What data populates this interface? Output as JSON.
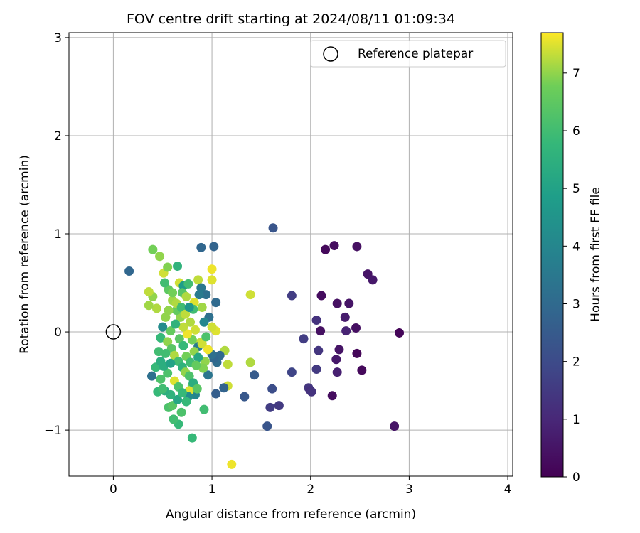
{
  "chart_data": {
    "type": "scatter",
    "title": "FOV centre drift starting at 2024/08/11 01:09:34",
    "xlabel": "Angular distance from reference (arcmin)",
    "ylabel": "Rotation from reference (arcmin)",
    "xlim": [
      -0.45,
      4.05
    ],
    "ylim": [
      -1.47,
      3.05
    ],
    "xticks": [
      0,
      1,
      2,
      3,
      4
    ],
    "xtick_labels": [
      "0",
      "1",
      "2",
      "3",
      "4"
    ],
    "yticks": [
      -1,
      0,
      1,
      2,
      3
    ],
    "ytick_labels": [
      "−1",
      "0",
      "1",
      "2",
      "3"
    ],
    "grid": true,
    "legend": {
      "placement": "upper-right",
      "entry": "Reference platepar"
    },
    "reference_point": {
      "x": 0,
      "y": 0
    },
    "colorbar": {
      "label": "Hours from first FF file",
      "range": [
        0,
        7.7
      ],
      "ticks": [
        0,
        1,
        2,
        3,
        4,
        5,
        6,
        7
      ],
      "tick_labels": [
        "0",
        "1",
        "2",
        "3",
        "4",
        "5",
        "6",
        "7"
      ],
      "colormap": "viridis"
    },
    "points": [
      {
        "x": 2.9,
        "y": -0.01,
        "h": 0.1
      },
      {
        "x": 2.85,
        "y": -0.96,
        "h": 0.5
      },
      {
        "x": 2.47,
        "y": -0.22,
        "h": 0.15
      },
      {
        "x": 2.52,
        "y": -0.39,
        "h": 0.2
      },
      {
        "x": 2.22,
        "y": -0.65,
        "h": 0.3
      },
      {
        "x": 2.46,
        "y": 0.04,
        "h": 0.35
      },
      {
        "x": 2.36,
        "y": 0.01,
        "h": 0.9
      },
      {
        "x": 2.35,
        "y": 0.15,
        "h": 0.7
      },
      {
        "x": 2.39,
        "y": 0.29,
        "h": 0.5
      },
      {
        "x": 2.27,
        "y": 0.29,
        "h": 0.4
      },
      {
        "x": 2.29,
        "y": -0.18,
        "h": 0.5
      },
      {
        "x": 2.26,
        "y": -0.28,
        "h": 0.6
      },
      {
        "x": 2.27,
        "y": -0.41,
        "h": 0.8
      },
      {
        "x": 2.15,
        "y": 0.84,
        "h": 0.2
      },
      {
        "x": 2.24,
        "y": 0.88,
        "h": 0.3
      },
      {
        "x": 2.47,
        "y": 0.87,
        "h": 0.4
      },
      {
        "x": 2.58,
        "y": 0.59,
        "h": 0.5
      },
      {
        "x": 2.63,
        "y": 0.53,
        "h": 0.6
      },
      {
        "x": 2.11,
        "y": 0.37,
        "h": 0.3
      },
      {
        "x": 2.1,
        "y": 0.01,
        "h": 0.4
      },
      {
        "x": 2.06,
        "y": 0.12,
        "h": 1.3
      },
      {
        "x": 2.08,
        "y": -0.19,
        "h": 1.4
      },
      {
        "x": 2.06,
        "y": -0.38,
        "h": 1.5
      },
      {
        "x": 1.93,
        "y": -0.07,
        "h": 1.6
      },
      {
        "x": 1.98,
        "y": -0.57,
        "h": 1.4
      },
      {
        "x": 2.0,
        "y": -0.6,
        "h": 1.2
      },
      {
        "x": 2.01,
        "y": -0.61,
        "h": 1.3
      },
      {
        "x": 1.81,
        "y": -0.41,
        "h": 1.8
      },
      {
        "x": 1.81,
        "y": 0.37,
        "h": 1.6
      },
      {
        "x": 1.68,
        "y": -0.75,
        "h": 1.5
      },
      {
        "x": 1.59,
        "y": -0.77,
        "h": 1.6
      },
      {
        "x": 1.61,
        "y": -0.58,
        "h": 2.1
      },
      {
        "x": 1.56,
        "y": -0.96,
        "h": 2.3
      },
      {
        "x": 1.62,
        "y": 1.06,
        "h": 2.3
      },
      {
        "x": 1.43,
        "y": -0.44,
        "h": 2.5
      },
      {
        "x": 1.33,
        "y": -0.66,
        "h": 2.4
      },
      {
        "x": 1.39,
        "y": 0.38,
        "h": 7.4
      },
      {
        "x": 1.39,
        "y": -0.31,
        "h": 7.2
      },
      {
        "x": 1.2,
        "y": -1.35,
        "h": 7.6
      },
      {
        "x": 1.16,
        "y": -0.55,
        "h": 7.4
      },
      {
        "x": 1.16,
        "y": -0.33,
        "h": 7.3
      },
      {
        "x": 1.13,
        "y": -0.19,
        "h": 7.2
      },
      {
        "x": 1.12,
        "y": -0.57,
        "h": 2.8
      },
      {
        "x": 1.08,
        "y": -0.24,
        "h": 3.0
      },
      {
        "x": 1.05,
        "y": -0.31,
        "h": 3.1
      },
      {
        "x": 1.02,
        "y": -0.27,
        "h": 2.9
      },
      {
        "x": 1.0,
        "y": -0.23,
        "h": 3.2
      },
      {
        "x": 1.04,
        "y": -0.63,
        "h": 2.6
      },
      {
        "x": 1.04,
        "y": 0.3,
        "h": 3.0
      },
      {
        "x": 1.04,
        "y": 0.01,
        "h": 7.5
      },
      {
        "x": 1.0,
        "y": 0.64,
        "h": 7.6
      },
      {
        "x": 1.0,
        "y": 0.53,
        "h": 7.5
      },
      {
        "x": 1.02,
        "y": 0.87,
        "h": 2.8
      },
      {
        "x": 1.0,
        "y": 0.05,
        "h": 7.4
      },
      {
        "x": 0.97,
        "y": 0.15,
        "h": 3.2
      },
      {
        "x": 0.94,
        "y": 0.38,
        "h": 3.2
      },
      {
        "x": 0.89,
        "y": 0.86,
        "h": 2.9
      },
      {
        "x": 0.96,
        "y": -0.44,
        "h": 3.4
      },
      {
        "x": 0.93,
        "y": -0.3,
        "h": 7.0
      },
      {
        "x": 0.91,
        "y": -0.37,
        "h": 6.9
      },
      {
        "x": 0.88,
        "y": -0.11,
        "h": 7.3
      },
      {
        "x": 0.86,
        "y": -0.15,
        "h": 3.6
      },
      {
        "x": 0.86,
        "y": 0.53,
        "h": 7.3
      },
      {
        "x": 0.89,
        "y": 0.45,
        "h": 3.5
      },
      {
        "x": 0.9,
        "y": 0.25,
        "h": 7.1
      },
      {
        "x": 0.92,
        "y": -0.79,
        "h": 6.0
      },
      {
        "x": 0.8,
        "y": -1.08,
        "h": 5.8
      },
      {
        "x": 0.83,
        "y": -0.64,
        "h": 4.0
      },
      {
        "x": 0.8,
        "y": -0.55,
        "h": 6.5
      },
      {
        "x": 0.77,
        "y": -0.6,
        "h": 7.5
      },
      {
        "x": 0.76,
        "y": -0.66,
        "h": 4.2
      },
      {
        "x": 0.74,
        "y": -0.71,
        "h": 5.8
      },
      {
        "x": 0.69,
        "y": -0.82,
        "h": 6.2
      },
      {
        "x": 0.66,
        "y": -0.94,
        "h": 5.8
      },
      {
        "x": 0.61,
        "y": -0.89,
        "h": 6.0
      },
      {
        "x": 0.56,
        "y": -0.77,
        "h": 6.2
      },
      {
        "x": 0.6,
        "y": -0.75,
        "h": 6.4
      },
      {
        "x": 0.65,
        "y": -0.69,
        "h": 5.2
      },
      {
        "x": 0.58,
        "y": -0.64,
        "h": 5.6
      },
      {
        "x": 0.52,
        "y": -0.6,
        "h": 5.4
      },
      {
        "x": 0.45,
        "y": -0.61,
        "h": 5.8
      },
      {
        "x": 0.5,
        "y": -0.58,
        "h": 6.0
      },
      {
        "x": 0.39,
        "y": -0.45,
        "h": 3.2
      },
      {
        "x": 0.48,
        "y": -0.48,
        "h": 6.2
      },
      {
        "x": 0.43,
        "y": -0.36,
        "h": 5.8
      },
      {
        "x": 0.48,
        "y": -0.3,
        "h": 5.4
      },
      {
        "x": 0.46,
        "y": -0.2,
        "h": 6.0
      },
      {
        "x": 0.48,
        "y": -0.06,
        "h": 5.8
      },
      {
        "x": 0.44,
        "y": 0.24,
        "h": 7.2
      },
      {
        "x": 0.4,
        "y": 0.36,
        "h": 7.0
      },
      {
        "x": 0.36,
        "y": 0.41,
        "h": 7.3
      },
      {
        "x": 0.36,
        "y": 0.27,
        "h": 7.1
      },
      {
        "x": 0.4,
        "y": 0.84,
        "h": 6.8
      },
      {
        "x": 0.47,
        "y": 0.77,
        "h": 7.0
      },
      {
        "x": 0.51,
        "y": 0.6,
        "h": 7.4
      },
      {
        "x": 0.55,
        "y": 0.66,
        "h": 6.9
      },
      {
        "x": 0.65,
        "y": 0.67,
        "h": 5.6
      },
      {
        "x": 0.67,
        "y": 0.5,
        "h": 7.4
      },
      {
        "x": 0.71,
        "y": 0.47,
        "h": 4.8
      },
      {
        "x": 0.7,
        "y": 0.4,
        "h": 6.4
      },
      {
        "x": 0.74,
        "y": 0.36,
        "h": 7.2
      },
      {
        "x": 0.76,
        "y": 0.49,
        "h": 6.0
      },
      {
        "x": 0.82,
        "y": 0.3,
        "h": 7.5
      },
      {
        "x": 0.87,
        "y": 0.38,
        "h": 3.6
      },
      {
        "x": 0.81,
        "y": 0.23,
        "h": 6.0
      },
      {
        "x": 0.78,
        "y": 0.1,
        "h": 7.2
      },
      {
        "x": 0.83,
        "y": 0.02,
        "h": 7.4
      },
      {
        "x": 0.8,
        "y": -0.08,
        "h": 6.8
      },
      {
        "x": 0.75,
        "y": -0.02,
        "h": 7.6
      },
      {
        "x": 0.71,
        "y": 0.05,
        "h": 7.3
      },
      {
        "x": 0.68,
        "y": 0.15,
        "h": 7.0
      },
      {
        "x": 0.64,
        "y": 0.22,
        "h": 6.6
      },
      {
        "x": 0.6,
        "y": 0.32,
        "h": 7.1
      },
      {
        "x": 0.56,
        "y": 0.43,
        "h": 6.5
      },
      {
        "x": 0.52,
        "y": 0.5,
        "h": 6.0
      },
      {
        "x": 0.56,
        "y": 0.22,
        "h": 7.0
      },
      {
        "x": 0.58,
        "y": 0.01,
        "h": 6.6
      },
      {
        "x": 0.55,
        "y": -0.1,
        "h": 7.0
      },
      {
        "x": 0.59,
        "y": -0.17,
        "h": 6.4
      },
      {
        "x": 0.62,
        "y": -0.24,
        "h": 7.2
      },
      {
        "x": 0.66,
        "y": -0.3,
        "h": 6.0
      },
      {
        "x": 0.7,
        "y": -0.36,
        "h": 5.6
      },
      {
        "x": 0.73,
        "y": -0.41,
        "h": 7.0
      },
      {
        "x": 0.77,
        "y": -0.45,
        "h": 6.2
      },
      {
        "x": 0.81,
        "y": -0.52,
        "h": 5.4
      },
      {
        "x": 0.85,
        "y": -0.58,
        "h": 6.4
      },
      {
        "x": 0.62,
        "y": -0.5,
        "h": 7.5
      },
      {
        "x": 0.66,
        "y": -0.56,
        "h": 6.2
      },
      {
        "x": 0.7,
        "y": -0.62,
        "h": 5.8
      },
      {
        "x": 0.74,
        "y": -0.25,
        "h": 6.8
      },
      {
        "x": 0.78,
        "y": -0.31,
        "h": 6.0
      },
      {
        "x": 0.82,
        "y": -0.2,
        "h": 7.0
      },
      {
        "x": 0.86,
        "y": -0.26,
        "h": 5.2
      },
      {
        "x": 0.9,
        "y": -0.12,
        "h": 7.4
      },
      {
        "x": 0.94,
        "y": -0.05,
        "h": 6.2
      },
      {
        "x": 0.63,
        "y": 0.08,
        "h": 5.6
      },
      {
        "x": 0.67,
        "y": -0.07,
        "h": 6.4
      },
      {
        "x": 0.71,
        "y": -0.14,
        "h": 5.8
      },
      {
        "x": 0.6,
        "y": 0.4,
        "h": 6.8
      },
      {
        "x": 0.64,
        "y": 0.29,
        "h": 7.2
      },
      {
        "x": 0.69,
        "y": 0.25,
        "h": 6.0
      },
      {
        "x": 0.73,
        "y": 0.18,
        "h": 7.3
      },
      {
        "x": 0.77,
        "y": 0.25,
        "h": 4.6
      },
      {
        "x": 0.55,
        "y": -0.42,
        "h": 6.2
      },
      {
        "x": 0.51,
        "y": -0.35,
        "h": 5.4
      },
      {
        "x": 0.53,
        "y": -0.22,
        "h": 6.0
      },
      {
        "x": 0.5,
        "y": 0.05,
        "h": 4.2
      },
      {
        "x": 0.53,
        "y": 0.15,
        "h": 7.0
      },
      {
        "x": 0.16,
        "y": 0.62,
        "h": 2.9
      },
      {
        "x": 0.92,
        "y": 0.1,
        "h": 4.0
      },
      {
        "x": 0.96,
        "y": -0.18,
        "h": 7.6
      },
      {
        "x": 0.84,
        "y": -0.34,
        "h": 6.6
      },
      {
        "x": 0.58,
        "y": -0.32,
        "h": 5.0
      }
    ]
  }
}
